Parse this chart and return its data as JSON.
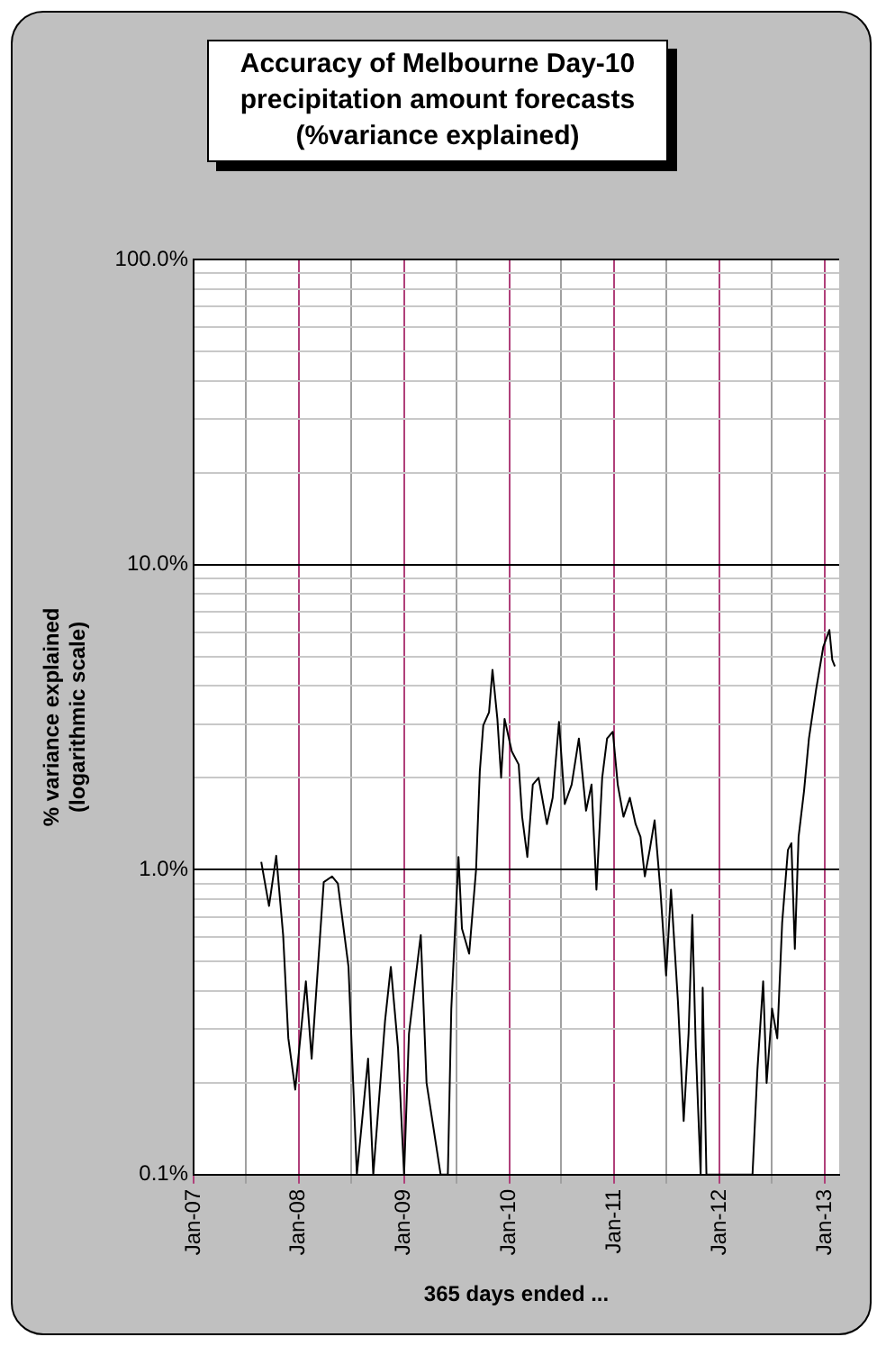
{
  "chart_data": {
    "type": "line",
    "title": "Accuracy of Melbourne Day-10\nprecipitation amount forecasts\n(%variance explained)",
    "xlabel": "365 days ended ...",
    "ylabel": "% variance explained\n(logarithmic scale)",
    "log": "y",
    "grid": true,
    "legend": false,
    "marker": "none",
    "line_style": "solid",
    "xlim": [
      "2007-01-01",
      "2013-02-20"
    ],
    "xticks": [
      {
        "value": "2007-01-01",
        "label": "Jan-07"
      },
      {
        "value": "2007-07-01",
        "label": null
      },
      {
        "value": "2008-01-01",
        "label": "Jan-08"
      },
      {
        "value": "2008-07-01",
        "label": null
      },
      {
        "value": "2009-01-01",
        "label": "Jan-09"
      },
      {
        "value": "2009-07-01",
        "label": null
      },
      {
        "value": "2010-01-01",
        "label": "Jan-10"
      },
      {
        "value": "2010-07-01",
        "label": null
      },
      {
        "value": "2011-01-01",
        "label": "Jan-11"
      },
      {
        "value": "2011-07-01",
        "label": null
      },
      {
        "value": "2012-01-01",
        "label": "Jan-12"
      },
      {
        "value": "2012-07-01",
        "label": null
      },
      {
        "value": "2013-01-01",
        "label": "Jan-13"
      }
    ],
    "ylim": [
      0.1,
      100
    ],
    "yticks": [
      {
        "value": 0.1,
        "label": "0.1%"
      },
      {
        "value": 0.2,
        "label": null
      },
      {
        "value": 0.3,
        "label": null
      },
      {
        "value": 0.4,
        "label": null
      },
      {
        "value": 0.5,
        "label": null
      },
      {
        "value": 0.6,
        "label": null
      },
      {
        "value": 0.7,
        "label": null
      },
      {
        "value": 0.8,
        "label": null
      },
      {
        "value": 0.9,
        "label": null
      },
      {
        "value": 1,
        "label": "1.0%"
      },
      {
        "value": 2,
        "label": null
      },
      {
        "value": 3,
        "label": null
      },
      {
        "value": 4,
        "label": null
      },
      {
        "value": 5,
        "label": null
      },
      {
        "value": 6,
        "label": null
      },
      {
        "value": 7,
        "label": null
      },
      {
        "value": 8,
        "label": null
      },
      {
        "value": 9,
        "label": null
      },
      {
        "value": 10,
        "label": "10.0%"
      },
      {
        "value": 20,
        "label": null
      },
      {
        "value": 30,
        "label": null
      },
      {
        "value": 40,
        "label": null
      },
      {
        "value": 50,
        "label": null
      },
      {
        "value": 60,
        "label": null
      },
      {
        "value": 70,
        "label": null
      },
      {
        "value": 80,
        "label": null
      },
      {
        "value": 90,
        "label": null
      },
      {
        "value": 100,
        "label": "100.0%"
      }
    ],
    "x": [
      "2007-08-24",
      "2007-09-20",
      "2007-10-15",
      "2007-11-08",
      "2007-11-26",
      "2007-12-20",
      "2008-01-26",
      "2008-02-15",
      "2008-03-28",
      "2008-04-26",
      "2008-05-16",
      "2008-06-22",
      "2008-07-21",
      "2008-08-29",
      "2008-09-16",
      "2008-10-27",
      "2008-11-16",
      "2008-12-11",
      "2009-01-01",
      "2009-01-18",
      "2009-02-11",
      "2009-02-28",
      "2009-03-20",
      "2009-05-08",
      "2009-06-02",
      "2009-06-14",
      "2009-07-09",
      "2009-07-21",
      "2009-08-15",
      "2009-09-08",
      "2009-09-21",
      "2009-10-03",
      "2009-10-23",
      "2009-11-04",
      "2009-11-21",
      "2009-12-04",
      "2009-12-16",
      "2010-01-10",
      "2010-02-03",
      "2010-02-15",
      "2010-03-05",
      "2010-03-24",
      "2010-04-13",
      "2010-05-12",
      "2010-06-01",
      "2010-06-23",
      "2010-07-13",
      "2010-08-06",
      "2010-08-31",
      "2010-09-25",
      "2010-10-14",
      "2010-10-31",
      "2010-11-20",
      "2010-12-07",
      "2010-12-27",
      "2011-01-13",
      "2011-02-02",
      "2011-02-24",
      "2011-03-16",
      "2011-04-02",
      "2011-04-17",
      "2011-05-04",
      "2011-05-21",
      "2011-06-10",
      "2011-06-30",
      "2011-07-17",
      "2011-08-10",
      "2011-08-30",
      "2011-09-16",
      "2011-09-29",
      "2011-10-11",
      "2011-10-28",
      "2011-11-04",
      "2011-11-17",
      "2012-02-11",
      "2012-04-25",
      "2012-05-12",
      "2012-06-01",
      "2012-06-13",
      "2012-07-02",
      "2012-07-20",
      "2012-08-06",
      "2012-08-26",
      "2012-09-07",
      "2012-09-19",
      "2012-10-02",
      "2012-10-21",
      "2012-11-07",
      "2012-12-02",
      "2012-12-27",
      "2013-01-17",
      "2013-01-27",
      "2013-02-05"
    ],
    "series": [
      {
        "color": "#000000",
        "values": [
          1.06,
          0.76,
          1.11,
          0.61,
          0.28,
          0.19,
          0.43,
          0.24,
          0.91,
          0.95,
          0.9,
          0.48,
          0.1,
          0.24,
          0.1,
          0.32,
          0.48,
          0.26,
          0.1,
          0.29,
          0.45,
          0.61,
          0.2,
          0.1,
          0.1,
          0.35,
          1.1,
          0.64,
          0.53,
          1.0,
          2.1,
          2.97,
          3.28,
          4.52,
          3.12,
          2.0,
          3.12,
          2.44,
          2.21,
          1.49,
          1.1,
          1.9,
          2.0,
          1.41,
          1.72,
          3.05,
          1.64,
          1.9,
          2.69,
          1.56,
          1.9,
          0.86,
          2.0,
          2.69,
          2.83,
          1.9,
          1.49,
          1.72,
          1.41,
          1.28,
          0.95,
          1.16,
          1.45,
          0.86,
          0.45,
          0.86,
          0.37,
          0.15,
          0.29,
          0.71,
          0.26,
          0.1,
          0.41,
          0.1,
          0.1,
          0.1,
          0.22,
          0.43,
          0.2,
          0.35,
          0.28,
          0.67,
          1.16,
          1.22,
          0.55,
          1.28,
          1.81,
          2.69,
          3.9,
          5.38,
          6.1,
          4.87,
          4.64
        ]
      }
    ]
  }
}
